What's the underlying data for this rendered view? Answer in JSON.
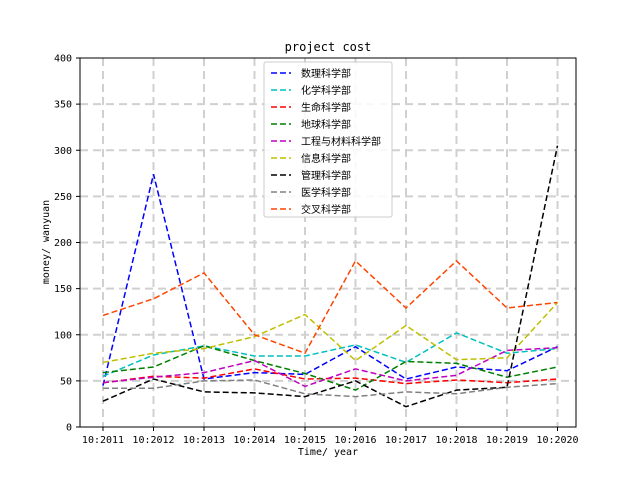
{
  "chart_data": {
    "type": "line",
    "title": "project cost",
    "xlabel": "Time/ year",
    "ylabel": "money/ wanyuan",
    "categories": [
      "10:2011",
      "10:2012",
      "10:2013",
      "10:2014",
      "10:2015",
      "10:2016",
      "10:2017",
      "10:2018",
      "10:2019",
      "10:2020"
    ],
    "ylim": [
      0,
      400
    ],
    "yticks": [
      "0",
      "50",
      "100",
      "150",
      "200",
      "250",
      "300",
      "350",
      "400"
    ],
    "grid": true,
    "legend_position": "top-center",
    "series": [
      {
        "name": "数理科学部",
        "color": "#0000ff",
        "values": [
          45,
          274,
          52,
          59,
          57,
          87,
          52,
          65,
          61,
          87
        ]
      },
      {
        "name": "化学科学部",
        "color": "#00bfbf",
        "values": [
          55,
          78,
          88,
          77,
          77,
          89,
          70,
          102,
          80,
          85
        ]
      },
      {
        "name": "生命科学部",
        "color": "#ff0000",
        "values": [
          48,
          55,
          53,
          63,
          52,
          53,
          47,
          51,
          48,
          52
        ]
      },
      {
        "name": "地球科学部",
        "color": "#008000",
        "values": [
          59,
          65,
          88,
          72,
          58,
          40,
          71,
          69,
          54,
          65
        ]
      },
      {
        "name": "工程与材料科学部",
        "color": "#bf00bf",
        "values": [
          48,
          54,
          59,
          72,
          44,
          63,
          50,
          56,
          83,
          86
        ]
      },
      {
        "name": "信息科学部",
        "color": "#bfbf00",
        "values": [
          70,
          80,
          85,
          98,
          122,
          72,
          110,
          73,
          75,
          135
        ]
      },
      {
        "name": "管理科学部",
        "color": "#000000",
        "values": [
          28,
          52,
          38,
          37,
          33,
          50,
          22,
          40,
          43,
          305
        ]
      },
      {
        "name": "医学科学部",
        "color": "#808080",
        "values": [
          42,
          42,
          50,
          51,
          36,
          33,
          38,
          36,
          43,
          47
        ]
      },
      {
        "name": "交叉科学部",
        "color": "#ff4500",
        "values": [
          121,
          139,
          167,
          100,
          80,
          180,
          129,
          180,
          129,
          135
        ]
      }
    ]
  }
}
